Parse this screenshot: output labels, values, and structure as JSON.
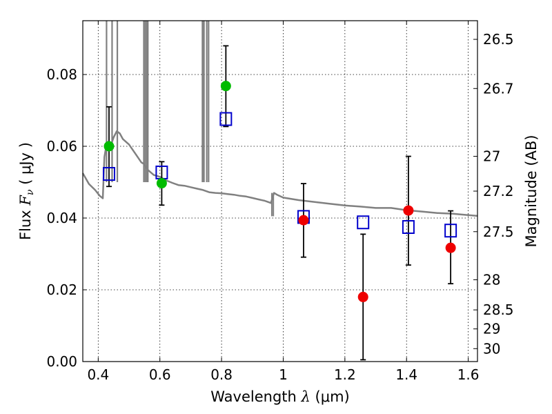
{
  "chart_data": {
    "type": "scatter",
    "xlabel_prefix": "Wavelength",
    "xlabel_symbol": "λ",
    "xlabel_unit": "(μm)",
    "ylabel_prefix": "Flux",
    "ylabel_symbol": "F",
    "ylabel_subscript": "ν",
    "ylabel_unit": "( μJy )",
    "y2label": "Magnitude (AB)",
    "xlim": [
      0.35,
      1.63
    ],
    "ylim": [
      0.0,
      0.095
    ],
    "grid": true,
    "xticks": [
      0.4,
      0.6,
      0.8,
      1.0,
      1.2,
      1.4,
      1.6
    ],
    "xtick_labels": [
      "0.4",
      "0.6",
      "0.8",
      "1",
      "1.2",
      "1.4",
      "1.6"
    ],
    "yticks": [
      0.0,
      0.02,
      0.04,
      0.06,
      0.08
    ],
    "ytick_labels": [
      "0.00",
      "0.02",
      "0.04",
      "0.06",
      "0.08"
    ],
    "y2ticks": [
      {
        "label": "26.5",
        "flux": 0.0898
      },
      {
        "label": "26.7",
        "flux": 0.0761
      },
      {
        "label": "27",
        "flux": 0.0572
      },
      {
        "label": "27.2",
        "flux": 0.0475
      },
      {
        "label": "27.5",
        "flux": 0.0362
      },
      {
        "label": "28",
        "flux": 0.0228
      },
      {
        "label": "28.5",
        "flux": 0.0144
      },
      {
        "label": "29",
        "flux": 0.0091
      },
      {
        "label": "30",
        "flux": 0.0036
      }
    ],
    "series": [
      {
        "name": "green-detections",
        "marker": "circle",
        "color": "#00bb00",
        "points": [
          {
            "x": 0.435,
            "y": 0.06,
            "err_lo": 0.0488,
            "err_hi": 0.071
          },
          {
            "x": 0.606,
            "y": 0.0497,
            "err_lo": 0.0436,
            "err_hi": 0.0557
          },
          {
            "x": 0.814,
            "y": 0.0768,
            "err_lo": 0.0655,
            "err_hi": 0.088
          }
        ]
      },
      {
        "name": "red-detections",
        "marker": "circle",
        "color": "#ee0000",
        "points": [
          {
            "x": 1.066,
            "y": 0.0394,
            "err_lo": 0.0291,
            "err_hi": 0.0496
          },
          {
            "x": 1.259,
            "y": 0.018,
            "err_lo": 0.0005,
            "err_hi": 0.0355
          },
          {
            "x": 1.406,
            "y": 0.0421,
            "err_lo": 0.0269,
            "err_hi": 0.0572
          },
          {
            "x": 1.543,
            "y": 0.0317,
            "err_lo": 0.0217,
            "err_hi": 0.042
          }
        ]
      },
      {
        "name": "model-photometry",
        "marker": "square",
        "color": "#0000cc",
        "points": [
          {
            "x": 0.435,
            "y": 0.0523
          },
          {
            "x": 0.606,
            "y": 0.0527
          },
          {
            "x": 0.814,
            "y": 0.0676
          },
          {
            "x": 1.066,
            "y": 0.0403
          },
          {
            "x": 1.259,
            "y": 0.0388
          },
          {
            "x": 1.406,
            "y": 0.0375
          },
          {
            "x": 1.543,
            "y": 0.0365
          }
        ]
      },
      {
        "name": "model-spectrum",
        "type": "line",
        "color": "#808080",
        "x": [
          0.35,
          0.37,
          0.39,
          0.405,
          0.415,
          0.42,
          0.425,
          0.43,
          0.44,
          0.45,
          0.46,
          0.47,
          0.48,
          0.5,
          0.52,
          0.54,
          0.55,
          0.56,
          0.58,
          0.6,
          0.62,
          0.64,
          0.66,
          0.68,
          0.7,
          0.72,
          0.74,
          0.76,
          0.78,
          0.8,
          0.82,
          0.84,
          0.86,
          0.88,
          0.9,
          0.92,
          0.94,
          0.95,
          0.96,
          0.97,
          0.98,
          1.0,
          1.05,
          1.1,
          1.15,
          1.2,
          1.25,
          1.3,
          1.35,
          1.4,
          1.45,
          1.5,
          1.55,
          1.6,
          1.63
        ],
        "y": [
          0.0525,
          0.0495,
          0.0478,
          0.0462,
          0.0455,
          0.057,
          0.0595,
          0.0612,
          0.06,
          0.0625,
          0.0642,
          0.0636,
          0.062,
          0.0605,
          0.058,
          0.0555,
          0.055,
          0.0535,
          0.052,
          0.0515,
          0.0505,
          0.0498,
          0.0492,
          0.049,
          0.0486,
          0.0482,
          0.0478,
          0.0472,
          0.047,
          0.0469,
          0.0467,
          0.0465,
          0.0462,
          0.046,
          0.0456,
          0.0452,
          0.0448,
          0.0445,
          0.0442,
          0.047,
          0.0465,
          0.0457,
          0.045,
          0.0445,
          0.044,
          0.0435,
          0.0432,
          0.0428,
          0.0428,
          0.0422,
          0.0418,
          0.0414,
          0.0412,
          0.0408,
          0.0406
        ]
      }
    ]
  }
}
